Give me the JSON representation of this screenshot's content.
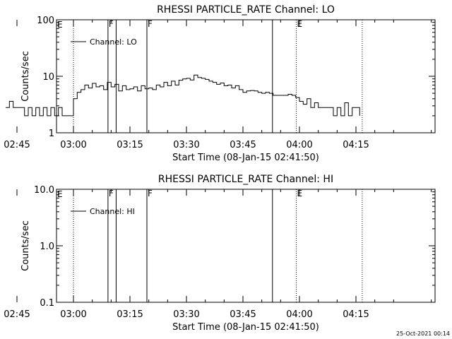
{
  "chart_data": [
    {
      "type": "line",
      "title": "RHESSI PARTICLE_RATE Channel: LO",
      "xlabel": "Start Time (08-Jan-15 02:41:50)",
      "ylabel": "Counts/sec",
      "yscale": "log",
      "ylim": [
        1,
        100
      ],
      "xlim_minutes": [
        -4.5,
        96
      ],
      "x_ticks": [
        "02:45",
        "03:00",
        "03:15",
        "03:30",
        "03:45",
        "04:00",
        "04:15"
      ],
      "y_ticks": [
        "1",
        "10",
        "100"
      ],
      "legend": "top-left",
      "series": [
        {
          "name": "Channel: LO",
          "x": [
            "02:42",
            "02:43",
            "02:44",
            "02:45",
            "02:46",
            "02:47",
            "02:48",
            "02:49",
            "02:50",
            "02:51",
            "02:52",
            "02:53",
            "02:54",
            "02:55",
            "02:56",
            "02:57",
            "02:58",
            "02:59",
            "03:00",
            "03:01",
            "03:02",
            "03:03",
            "03:04",
            "03:05",
            "03:06",
            "03:07",
            "03:08",
            "03:09",
            "03:10",
            "03:11",
            "03:12",
            "03:13",
            "03:14",
            "03:15",
            "03:16",
            "03:17",
            "03:18",
            "03:19",
            "03:20",
            "03:21",
            "03:22",
            "03:23",
            "03:24",
            "03:25",
            "03:26",
            "03:27",
            "03:28",
            "03:29",
            "03:30",
            "03:31",
            "03:32",
            "03:33",
            "03:34",
            "03:35",
            "03:36",
            "03:37",
            "03:38",
            "03:39",
            "03:40",
            "03:41",
            "03:42",
            "03:43",
            "03:44",
            "03:45",
            "03:46",
            "03:47",
            "03:48",
            "03:49",
            "03:50",
            "03:51",
            "03:52",
            "03:53",
            "03:54",
            "03:55",
            "03:56",
            "03:57",
            "03:58",
            "03:59",
            "04:00",
            "04:01",
            "04:02",
            "04:03",
            "04:04",
            "04:05",
            "04:06",
            "04:07",
            "04:08",
            "04:09",
            "04:10",
            "04:11",
            "04:12",
            "04:13",
            "04:14",
            "04:15",
            "04:16"
          ],
          "y": [
            2.8,
            3.6,
            2.8,
            2.8,
            2.8,
            2.0,
            2.8,
            2.0,
            2.8,
            2.0,
            2.8,
            2.0,
            2.8,
            2.0,
            2.8,
            2.0,
            2.0,
            2.0,
            4.0,
            5.2,
            5.8,
            7.0,
            6.2,
            7.5,
            6.5,
            6.8,
            5.8,
            7.8,
            6.5,
            7.2,
            5.5,
            6.8,
            5.8,
            6.0,
            6.5,
            5.5,
            6.8,
            6.0,
            6.2,
            5.8,
            7.0,
            6.5,
            7.8,
            6.8,
            8.2,
            7.0,
            8.5,
            9.0,
            9.2,
            8.6,
            10.5,
            9.5,
            9.2,
            8.8,
            8.2,
            7.8,
            7.2,
            7.6,
            6.8,
            7.0,
            6.2,
            6.8,
            5.8,
            5.2,
            5.5,
            5.6,
            5.5,
            5.2,
            5.0,
            5.2,
            5.0,
            4.6,
            4.6,
            4.6,
            4.6,
            4.8,
            4.6,
            4.2,
            3.6,
            3.2,
            4.0,
            2.8,
            3.4,
            2.8,
            2.8,
            2.8,
            2.8,
            2.0,
            2.8,
            2.0,
            3.4,
            2.0,
            2.8,
            2.8,
            2.0
          ]
        }
      ],
      "markers": [
        {
          "time": "03:00",
          "label": "",
          "style": "dotted"
        },
        {
          "time": "03:09:10",
          "label": "F",
          "style": "solid"
        },
        {
          "time": "03:11:20",
          "label": "",
          "style": "solid"
        },
        {
          "time": "03:19:30",
          "label": "F",
          "style": "solid"
        },
        {
          "time": "03:52:50",
          "label": "",
          "style": "solid"
        },
        {
          "time": "03:59:10",
          "label": "E",
          "style": "dotted"
        },
        {
          "time": "04:16:40",
          "label": "",
          "style": "dotted"
        }
      ],
      "corner_label": "E"
    },
    {
      "type": "line",
      "title": "RHESSI PARTICLE_RATE Channel: HI",
      "xlabel": "Start Time (08-Jan-15 02:41:50)",
      "ylabel": "Counts/sec",
      "yscale": "log",
      "ylim": [
        0.1,
        10
      ],
      "xlim_minutes": [
        -4.5,
        96
      ],
      "x_ticks": [
        "02:45",
        "03:00",
        "03:15",
        "03:30",
        "03:45",
        "04:00",
        "04:15"
      ],
      "y_ticks": [
        "0.1",
        "1.0",
        "10.0"
      ],
      "legend": "top-left",
      "series": [
        {
          "name": "Channel: HI",
          "x": [],
          "y": []
        }
      ],
      "markers": [
        {
          "time": "03:00",
          "label": "",
          "style": "dotted"
        },
        {
          "time": "03:09:10",
          "label": "F",
          "style": "solid"
        },
        {
          "time": "03:11:20",
          "label": "",
          "style": "solid"
        },
        {
          "time": "03:19:30",
          "label": "F",
          "style": "solid"
        },
        {
          "time": "03:52:50",
          "label": "",
          "style": "solid"
        },
        {
          "time": "03:59:10",
          "label": "E",
          "style": "dotted"
        },
        {
          "time": "04:16:40",
          "label": "",
          "style": "dotted"
        }
      ],
      "corner_label": "E"
    }
  ],
  "footer": {
    "timestamp": "25-Oct-2021 00:14"
  }
}
